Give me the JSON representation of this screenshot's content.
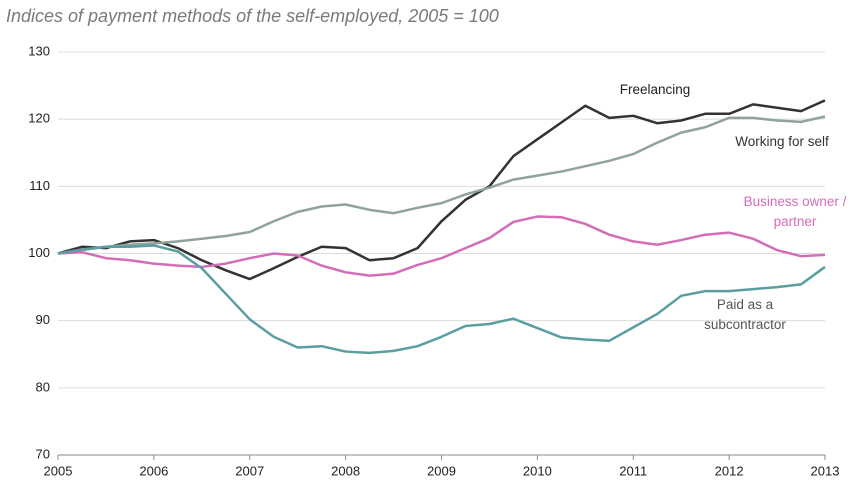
{
  "chart_data": {
    "type": "line",
    "title": "Indices of payment methods of the self-employed, 2005 = 100",
    "x": [
      2005,
      2005.25,
      2005.5,
      2005.75,
      2006,
      2006.25,
      2006.5,
      2006.75,
      2007,
      2007.25,
      2007.5,
      2007.75,
      2008,
      2008.25,
      2008.5,
      2008.75,
      2009,
      2009.25,
      2009.5,
      2009.75,
      2010,
      2010.25,
      2010.5,
      2010.75,
      2011,
      2011.25,
      2011.5,
      2011.75,
      2012,
      2012.25,
      2012.5,
      2012.75,
      2013
    ],
    "series": [
      {
        "name": "Freelancing",
        "color": "#333333",
        "values": [
          100,
          101,
          100.8,
          101.8,
          102,
          100.8,
          99,
          97.5,
          96.2,
          97.8,
          99.5,
          101,
          100.8,
          99,
          99.3,
          100.8,
          104.8,
          108,
          110,
          114.5,
          117,
          119.5,
          122,
          120.2,
          120.5,
          119.4,
          119.8,
          120.8,
          120.8,
          122.2,
          121.7,
          121.2,
          122.8
        ]
      },
      {
        "name": "Working for self",
        "color": "#8fa39b",
        "values": [
          100,
          100.5,
          101,
          101.3,
          101.5,
          101.8,
          102.2,
          102.6,
          103.2,
          104.8,
          106.2,
          107,
          107.3,
          106.5,
          106,
          106.8,
          107.5,
          108.8,
          109.8,
          111,
          111.6,
          112.2,
          113,
          113.8,
          114.8,
          116.5,
          118,
          118.8,
          120.2,
          120.2,
          119.8,
          119.6,
          120.4
        ]
      },
      {
        "name": "Business owner / partner",
        "color": "#d36db8",
        "values": [
          100,
          100.2,
          99.3,
          99,
          98.5,
          98.2,
          98,
          98.5,
          99.3,
          100,
          99.7,
          98.2,
          97.2,
          96.7,
          97,
          98.3,
          99.3,
          100.8,
          102.3,
          104.7,
          105.5,
          105.4,
          104.4,
          102.8,
          101.8,
          101.3,
          102,
          102.8,
          103.1,
          102.2,
          100.5,
          99.6,
          99.8
        ]
      },
      {
        "name": "Paid as a subcontractor",
        "color": "#5a9ea0",
        "values": [
          100,
          100.6,
          101,
          101,
          101.2,
          100.3,
          97.8,
          94,
          90.2,
          87.6,
          86,
          86.2,
          85.4,
          85.2,
          85.5,
          86.2,
          87.6,
          89.2,
          89.5,
          90.3,
          88.9,
          87.5,
          87.2,
          87,
          89,
          91,
          93.7,
          94.4,
          94.4,
          94.7,
          95,
          95.4,
          98
        ]
      }
    ],
    "xlim": [
      2005,
      2013
    ],
    "xticks": [
      2005,
      2006,
      2007,
      2008,
      2009,
      2010,
      2011,
      2012,
      2013
    ],
    "ylim": [
      70,
      130
    ],
    "yticks": [
      70,
      80,
      90,
      100,
      110,
      120,
      130
    ],
    "grid": true
  }
}
